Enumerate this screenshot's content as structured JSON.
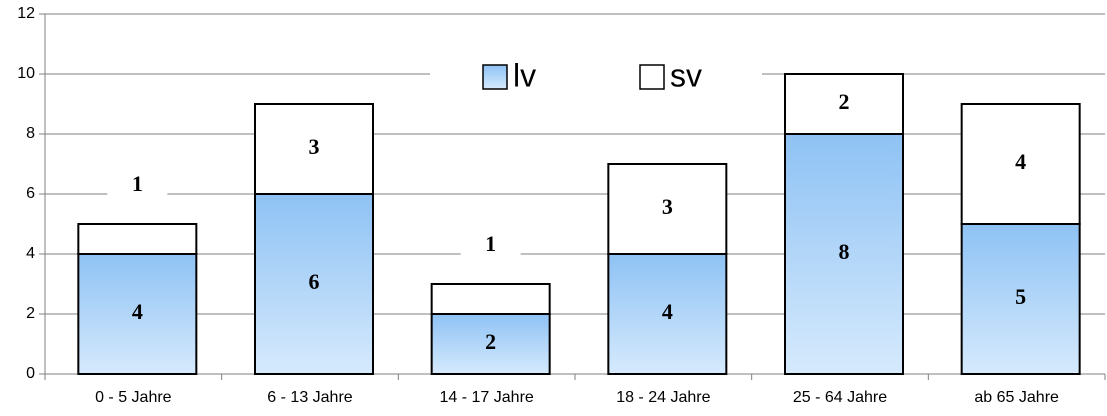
{
  "chart_data": {
    "type": "stacked_bar",
    "categories": [
      "0 - 5 Jahre",
      "6 - 13 Jahre",
      "14 - 17 Jahre",
      "18 - 24 Jahre",
      "25 - 64 Jahre",
      "ab 65 Jahre"
    ],
    "series": [
      {
        "name": "lv",
        "color": "#99c8f5",
        "values": [
          4,
          6,
          2,
          4,
          8,
          5
        ]
      },
      {
        "name": "sv",
        "color": "#ffffff",
        "values": [
          1,
          3,
          1,
          3,
          2,
          4
        ]
      }
    ],
    "ylim": [
      0,
      12
    ],
    "yticks": [
      0,
      2,
      4,
      6,
      8,
      10,
      12
    ],
    "grid": true,
    "legend": "top"
  }
}
